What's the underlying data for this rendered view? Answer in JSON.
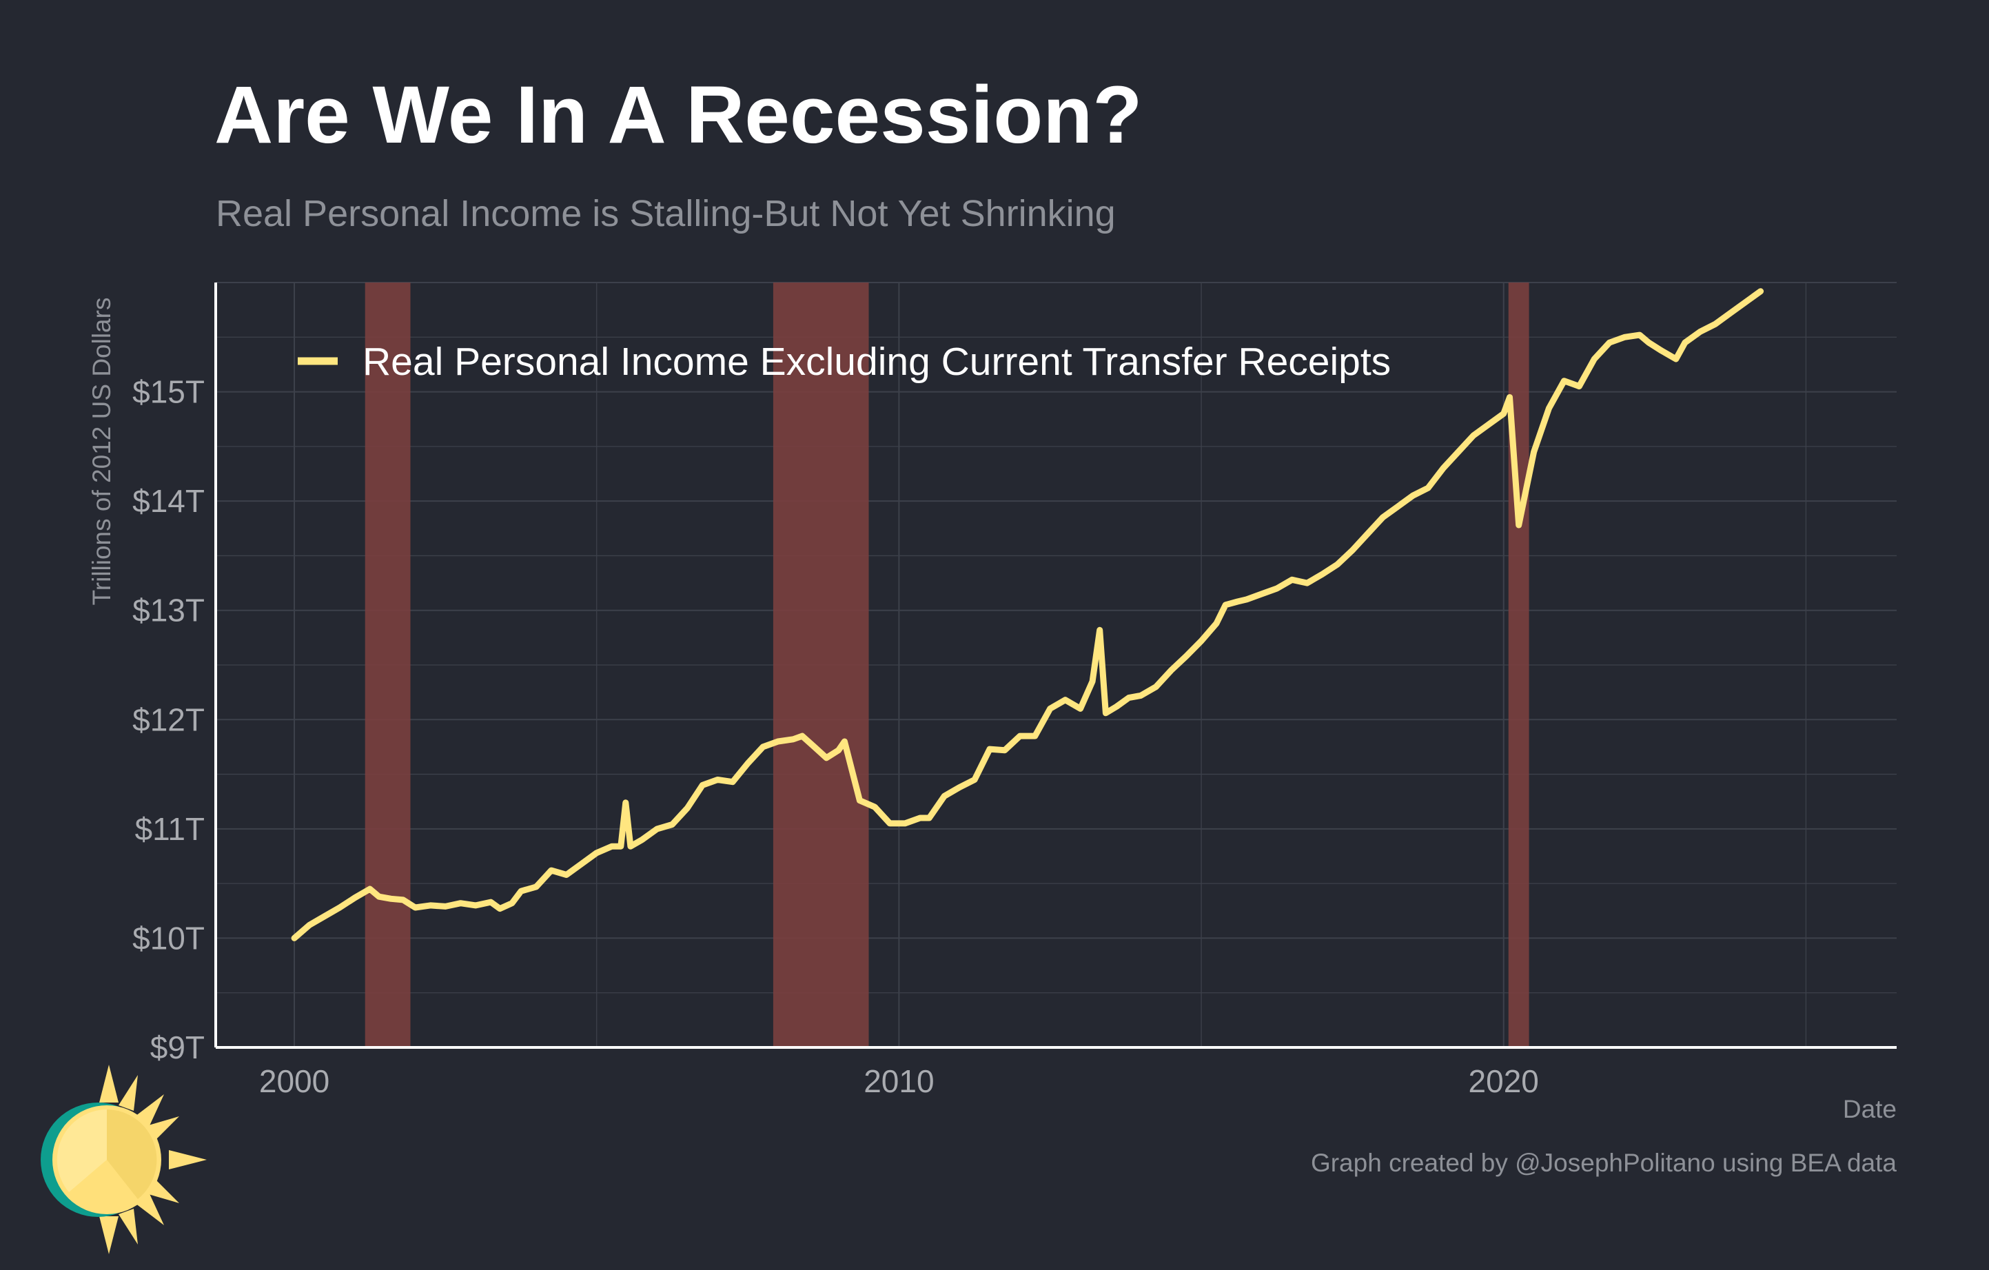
{
  "title": "Are We In A Recession?",
  "subtitle": "Real Personal Income is Stalling-But Not Yet Shrinking",
  "caption": "Graph created by @JosephPolitano using BEA data",
  "colors": {
    "background": "#252831",
    "line": "#ffe680",
    "recession": "#7a3f3f",
    "grid": "#3d414b"
  },
  "chart_data": {
    "type": "line",
    "xlabel": "Date",
    "ylabel": "Trillions of 2012 US Dollars",
    "xlim": [
      1998.7,
      2026.5
    ],
    "ylim": [
      9,
      16
    ],
    "x_ticks": [
      {
        "value": 2000,
        "label": "2000"
      },
      {
        "value": 2010,
        "label": "2010"
      },
      {
        "value": 2020,
        "label": "2020"
      }
    ],
    "y_ticks": [
      {
        "value": 9,
        "label": "$9T"
      },
      {
        "value": 10,
        "label": "$10T"
      },
      {
        "value": 11,
        "label": "$11T"
      },
      {
        "value": 12,
        "label": "$12T"
      },
      {
        "value": 13,
        "label": "$13T"
      },
      {
        "value": 14,
        "label": "$14T"
      },
      {
        "value": 15,
        "label": "$15T"
      }
    ],
    "grid": true,
    "legend_position": "top-left",
    "recessions": [
      {
        "start": 2001.17,
        "end": 2001.92
      },
      {
        "start": 2007.92,
        "end": 2009.5
      },
      {
        "start": 2020.08,
        "end": 2020.42
      }
    ],
    "series": [
      {
        "name": "Real Personal Income Excluding Current Transfer Receipts",
        "points": [
          [
            2000.0,
            10.0
          ],
          [
            2000.25,
            10.12
          ],
          [
            2000.5,
            10.2
          ],
          [
            2000.75,
            10.28
          ],
          [
            2001.0,
            10.37
          ],
          [
            2001.25,
            10.45
          ],
          [
            2001.4,
            10.38
          ],
          [
            2001.6,
            10.36
          ],
          [
            2001.8,
            10.35
          ],
          [
            2002.0,
            10.28
          ],
          [
            2002.25,
            10.3
          ],
          [
            2002.5,
            10.29
          ],
          [
            2002.75,
            10.32
          ],
          [
            2003.0,
            10.3
          ],
          [
            2003.25,
            10.33
          ],
          [
            2003.4,
            10.27
          ],
          [
            2003.6,
            10.32
          ],
          [
            2003.75,
            10.43
          ],
          [
            2004.0,
            10.47
          ],
          [
            2004.25,
            10.62
          ],
          [
            2004.5,
            10.58
          ],
          [
            2004.75,
            10.68
          ],
          [
            2005.0,
            10.78
          ],
          [
            2005.25,
            10.84
          ],
          [
            2005.4,
            10.84
          ],
          [
            2005.48,
            11.24
          ],
          [
            2005.56,
            10.84
          ],
          [
            2005.75,
            10.9
          ],
          [
            2006.0,
            11.0
          ],
          [
            2006.25,
            11.04
          ],
          [
            2006.5,
            11.19
          ],
          [
            2006.75,
            11.4
          ],
          [
            2007.0,
            11.45
          ],
          [
            2007.25,
            11.43
          ],
          [
            2007.5,
            11.6
          ],
          [
            2007.75,
            11.75
          ],
          [
            2008.0,
            11.8
          ],
          [
            2008.25,
            11.82
          ],
          [
            2008.4,
            11.85
          ],
          [
            2008.6,
            11.75
          ],
          [
            2008.8,
            11.65
          ],
          [
            2009.0,
            11.72
          ],
          [
            2009.1,
            11.8
          ],
          [
            2009.35,
            11.26
          ],
          [
            2009.6,
            11.2
          ],
          [
            2009.85,
            11.05
          ],
          [
            2010.1,
            11.05
          ],
          [
            2010.35,
            11.1
          ],
          [
            2010.5,
            11.1
          ],
          [
            2010.75,
            11.3
          ],
          [
            2011.0,
            11.38
          ],
          [
            2011.25,
            11.45
          ],
          [
            2011.5,
            11.73
          ],
          [
            2011.75,
            11.72
          ],
          [
            2012.0,
            11.85
          ],
          [
            2012.25,
            11.85
          ],
          [
            2012.5,
            12.1
          ],
          [
            2012.75,
            12.18
          ],
          [
            2013.0,
            12.1
          ],
          [
            2013.2,
            12.35
          ],
          [
            2013.32,
            12.82
          ],
          [
            2013.42,
            12.06
          ],
          [
            2013.6,
            12.12
          ],
          [
            2013.8,
            12.2
          ],
          [
            2014.0,
            12.22
          ],
          [
            2014.25,
            12.3
          ],
          [
            2014.5,
            12.45
          ],
          [
            2014.75,
            12.58
          ],
          [
            2015.0,
            12.72
          ],
          [
            2015.25,
            12.88
          ],
          [
            2015.4,
            13.05
          ],
          [
            2015.6,
            13.08
          ],
          [
            2015.75,
            13.1
          ],
          [
            2016.0,
            13.15
          ],
          [
            2016.25,
            13.2
          ],
          [
            2016.5,
            13.28
          ],
          [
            2016.75,
            13.25
          ],
          [
            2017.0,
            13.33
          ],
          [
            2017.25,
            13.42
          ],
          [
            2017.5,
            13.55
          ],
          [
            2017.75,
            13.7
          ],
          [
            2018.0,
            13.85
          ],
          [
            2018.25,
            13.95
          ],
          [
            2018.5,
            14.05
          ],
          [
            2018.75,
            14.12
          ],
          [
            2019.0,
            14.3
          ],
          [
            2019.25,
            14.45
          ],
          [
            2019.5,
            14.6
          ],
          [
            2019.75,
            14.7
          ],
          [
            2020.0,
            14.8
          ],
          [
            2020.1,
            14.95
          ],
          [
            2020.25,
            13.78
          ],
          [
            2020.5,
            14.45
          ],
          [
            2020.75,
            14.85
          ],
          [
            2021.0,
            15.1
          ],
          [
            2021.25,
            15.05
          ],
          [
            2021.5,
            15.3
          ],
          [
            2021.75,
            15.45
          ],
          [
            2022.0,
            15.5
          ],
          [
            2022.25,
            15.52
          ],
          [
            2022.4,
            15.45
          ],
          [
            2022.6,
            15.38
          ],
          [
            2022.85,
            15.3
          ],
          [
            2023.0,
            15.45
          ],
          [
            2023.25,
            15.55
          ],
          [
            2023.5,
            15.62
          ],
          [
            2023.75,
            15.72
          ],
          [
            2024.0,
            15.82
          ],
          [
            2024.25,
            15.92
          ]
        ]
      }
    ]
  }
}
